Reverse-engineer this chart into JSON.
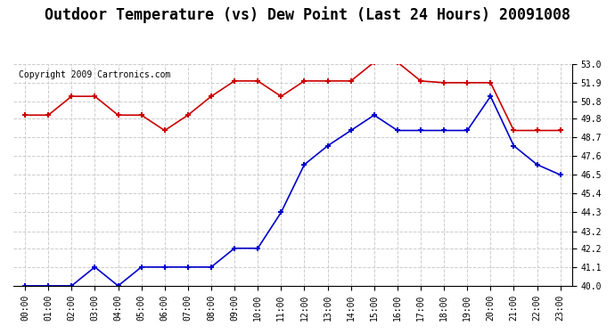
{
  "title": "Outdoor Temperature (vs) Dew Point (Last 24 Hours) 20091008",
  "copyright": "Copyright 2009 Cartronics.com",
  "x_labels": [
    "00:00",
    "01:00",
    "02:00",
    "03:00",
    "04:00",
    "05:00",
    "06:00",
    "07:00",
    "08:00",
    "09:00",
    "10:00",
    "11:00",
    "12:00",
    "13:00",
    "14:00",
    "15:00",
    "16:00",
    "17:00",
    "18:00",
    "19:00",
    "20:00",
    "21:00",
    "22:00",
    "23:00"
  ],
  "temp_red": [
    50.0,
    50.0,
    51.1,
    51.1,
    50.0,
    50.0,
    49.1,
    50.0,
    51.1,
    52.0,
    52.0,
    51.1,
    52.0,
    52.0,
    52.0,
    53.1,
    53.1,
    52.0,
    51.9,
    51.9,
    51.9,
    49.1,
    49.1,
    49.1
  ],
  "dew_blue": [
    40.0,
    40.0,
    40.0,
    41.1,
    40.0,
    41.1,
    41.1,
    41.1,
    41.1,
    42.2,
    42.2,
    44.3,
    47.1,
    48.2,
    49.1,
    50.0,
    49.1,
    49.1,
    49.1,
    49.1,
    51.1,
    48.2,
    47.1,
    46.5
  ],
  "ylim": [
    40.0,
    53.0
  ],
  "yticks": [
    40.0,
    41.1,
    42.2,
    43.2,
    44.3,
    45.4,
    46.5,
    47.6,
    48.7,
    49.8,
    50.8,
    51.9,
    53.0
  ],
  "bg_color": "#ffffff",
  "plot_bg_color": "#ffffff",
  "grid_color": "#cccccc",
  "red_color": "#cc0000",
  "blue_color": "#0000cc",
  "title_fontsize": 12,
  "copyright_fontsize": 7
}
